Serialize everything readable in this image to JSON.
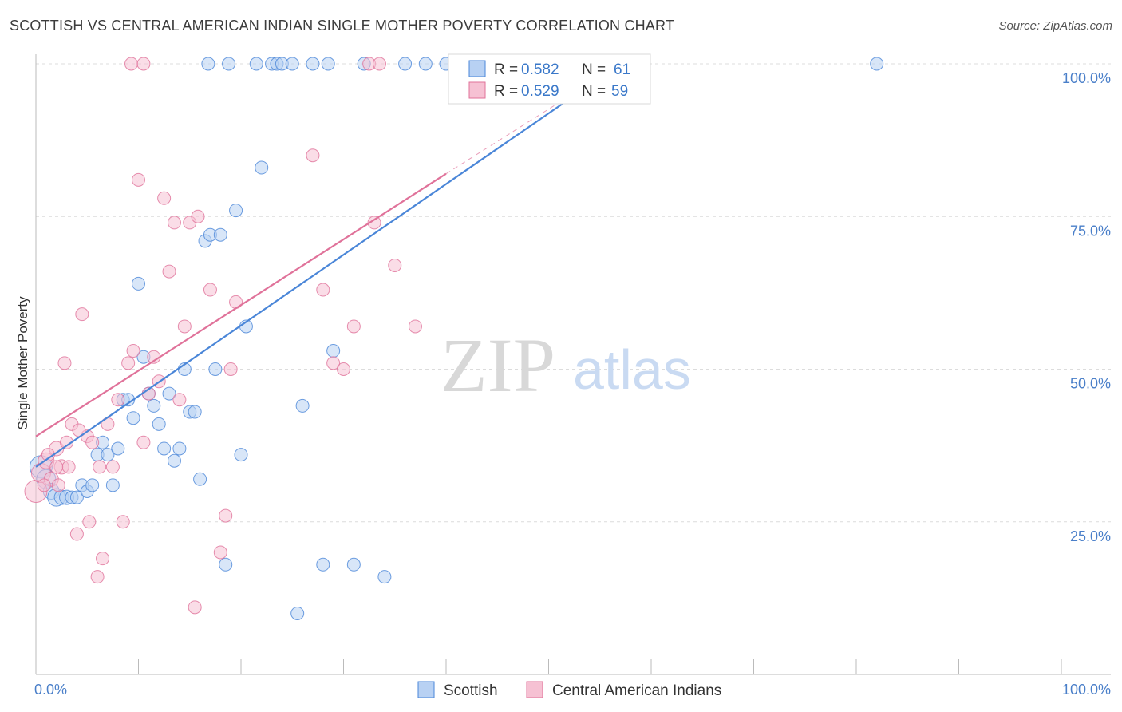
{
  "title": "SCOTTISH VS CENTRAL AMERICAN INDIAN SINGLE MOTHER POVERTY CORRELATION CHART",
  "source": "Source: ZipAtlas.com",
  "watermark": {
    "zip": "ZIP",
    "atlas": "atlas"
  },
  "chart_data": {
    "type": "scatter",
    "title": "SCOTTISH VS CENTRAL AMERICAN INDIAN SINGLE MOTHER POVERTY CORRELATION CHART",
    "xlabel": "",
    "ylabel": "Single Mother Poverty",
    "xlim": [
      0,
      100
    ],
    "ylim": [
      0,
      100
    ],
    "x_tick_labels": [
      "0.0%",
      "100.0%"
    ],
    "y_ticks": [
      25,
      50,
      75,
      100
    ],
    "y_tick_labels": [
      "25.0%",
      "50.0%",
      "75.0%",
      "100.0%"
    ],
    "grid": true,
    "legend_position": "top-center",
    "stats": [
      {
        "series": "Scottish",
        "r_label": "R =",
        "r_value": "0.582",
        "n_label": "N =",
        "n_value": "61"
      },
      {
        "series": "Central American Indians",
        "r_label": "R =",
        "r_value": "0.529",
        "n_label": "N =",
        "n_value": "59"
      }
    ],
    "series": [
      {
        "name": "Scottish",
        "color": "#4a86d8",
        "fill": "#b8d1f3",
        "trend": {
          "x0": 0,
          "y0": 34,
          "x1": 57,
          "y1": 100,
          "dash_to": null
        },
        "points": [
          [
            0.5,
            34,
            14
          ],
          [
            1,
            32,
            12
          ],
          [
            1.5,
            30,
            10
          ],
          [
            2,
            29,
            11
          ],
          [
            2.5,
            29,
            9
          ],
          [
            3,
            29,
            9
          ],
          [
            3.5,
            29,
            8
          ],
          [
            4,
            29,
            8
          ],
          [
            4.5,
            31,
            8
          ],
          [
            5,
            30,
            8
          ],
          [
            5.5,
            31,
            8
          ],
          [
            6,
            36,
            8
          ],
          [
            6.5,
            38,
            8
          ],
          [
            7,
            36,
            8
          ],
          [
            7.5,
            31,
            8
          ],
          [
            8,
            37,
            8
          ],
          [
            8.5,
            45,
            8
          ],
          [
            9,
            45,
            8
          ],
          [
            9.5,
            42,
            8
          ],
          [
            10,
            64,
            8
          ],
          [
            10.5,
            52,
            8
          ],
          [
            11,
            46,
            8
          ],
          [
            11.5,
            44,
            8
          ],
          [
            12,
            41,
            8
          ],
          [
            12.5,
            37,
            8
          ],
          [
            13,
            46,
            8
          ],
          [
            13.5,
            35,
            8
          ],
          [
            14,
            37,
            8
          ],
          [
            14.5,
            50,
            8
          ],
          [
            15,
            43,
            8
          ],
          [
            15.5,
            43,
            8
          ],
          [
            16,
            32,
            8
          ],
          [
            16.5,
            71,
            8
          ],
          [
            17,
            72,
            8
          ],
          [
            17.5,
            50,
            8
          ],
          [
            18,
            72,
            8
          ],
          [
            18.5,
            18,
            8
          ],
          [
            19.5,
            76,
            8
          ],
          [
            20,
            36,
            8
          ],
          [
            20.5,
            57,
            8
          ],
          [
            22,
            83,
            8
          ],
          [
            23,
            100,
            8
          ],
          [
            23.5,
            100,
            8
          ],
          [
            24,
            100,
            8
          ],
          [
            25,
            100,
            8
          ],
          [
            25.5,
            10,
            8
          ],
          [
            26,
            44,
            8
          ],
          [
            27,
            100,
            8
          ],
          [
            28,
            18,
            8
          ],
          [
            28.5,
            100,
            8
          ],
          [
            29,
            53,
            8
          ],
          [
            31,
            18,
            8
          ],
          [
            32,
            100,
            8
          ],
          [
            34,
            16,
            8
          ],
          [
            36,
            100,
            8
          ],
          [
            38,
            100,
            8
          ],
          [
            18.8,
            100,
            8
          ],
          [
            16.8,
            100,
            8
          ],
          [
            21.5,
            100,
            8
          ],
          [
            82,
            100,
            8
          ],
          [
            40,
            100,
            8
          ]
        ]
      },
      {
        "name": "Central American Indians",
        "color": "#e0729a",
        "fill": "#f6c1d3",
        "trend": {
          "x0": 0,
          "y0": 39,
          "x1": 40,
          "y1": 82,
          "dash_to": [
            57,
            100
          ]
        },
        "points": [
          [
            0,
            30,
            14
          ],
          [
            0.5,
            33,
            12
          ],
          [
            1,
            35,
            10
          ],
          [
            1.5,
            32,
            9
          ],
          [
            2,
            37,
            9
          ],
          [
            2.5,
            34,
            9
          ],
          [
            3,
            38,
            8
          ],
          [
            3.5,
            41,
            8
          ],
          [
            4,
            23,
            8
          ],
          [
            4.5,
            59,
            8
          ],
          [
            5,
            39,
            8
          ],
          [
            5.5,
            38,
            8
          ],
          [
            6,
            16,
            8
          ],
          [
            6.5,
            19,
            8
          ],
          [
            7,
            41,
            8
          ],
          [
            7.5,
            34,
            8
          ],
          [
            8,
            45,
            8
          ],
          [
            8.5,
            25,
            8
          ],
          [
            9,
            51,
            8
          ],
          [
            9.5,
            53,
            8
          ],
          [
            10,
            81,
            8
          ],
          [
            10.5,
            38,
            8
          ],
          [
            11,
            46,
            8
          ],
          [
            11.5,
            52,
            8
          ],
          [
            12,
            48,
            8
          ],
          [
            12.5,
            78,
            8
          ],
          [
            13,
            66,
            8
          ],
          [
            13.5,
            74,
            8
          ],
          [
            14,
            45,
            8
          ],
          [
            14.5,
            57,
            8
          ],
          [
            15,
            74,
            8
          ],
          [
            15.5,
            11,
            8
          ],
          [
            17,
            63,
            8
          ],
          [
            18,
            20,
            8
          ],
          [
            18.5,
            26,
            8
          ],
          [
            19,
            50,
            8
          ],
          [
            19.5,
            61,
            8
          ],
          [
            15.8,
            75,
            8
          ],
          [
            2.8,
            51,
            8
          ],
          [
            4.2,
            40,
            8
          ],
          [
            3.2,
            34,
            8
          ],
          [
            5.2,
            25,
            8
          ],
          [
            6.2,
            34,
            8
          ],
          [
            27,
            85,
            8
          ],
          [
            28,
            63,
            8
          ],
          [
            29,
            51,
            8
          ],
          [
            30,
            50,
            8
          ],
          [
            31,
            57,
            8
          ],
          [
            33,
            74,
            8
          ],
          [
            35,
            67,
            8
          ],
          [
            37,
            57,
            8
          ],
          [
            9.3,
            100,
            8
          ],
          [
            10.5,
            100,
            8
          ],
          [
            32.5,
            100,
            8
          ],
          [
            33.5,
            100,
            8
          ],
          [
            2.2,
            31,
            8
          ],
          [
            1.2,
            36,
            8
          ],
          [
            0.8,
            31,
            8
          ],
          [
            2,
            34,
            8
          ]
        ]
      }
    ]
  }
}
